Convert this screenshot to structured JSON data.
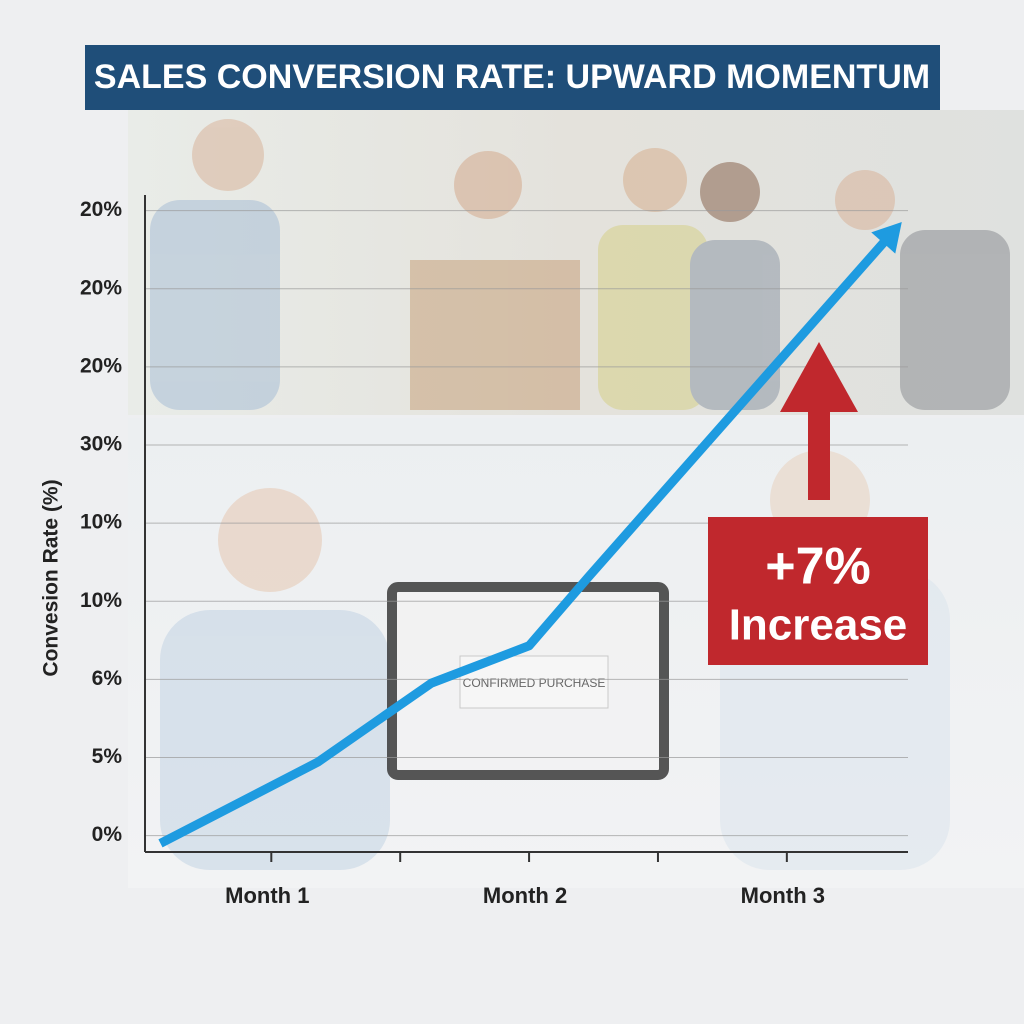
{
  "chart_data": {
    "type": "line",
    "title": "SALES CONVERSION RATE: UPWARD MOMENTUM",
    "ylabel": "Convesion Rate (%)",
    "x": [
      0.57,
      1.18,
      1.62,
      2.0,
      2.23,
      3.41
    ],
    "series": [
      {
        "name": "Conversion rate",
        "color": "#1e9be0",
        "values": [
          -0.1,
          0.94,
          1.95,
          2.43,
          3.31,
          7.72
        ]
      }
    ],
    "xlim": [
      0.51,
      3.47
    ],
    "xticks": [
      {
        "value": 1,
        "label": "Month 1"
      },
      {
        "value": 2,
        "label": "Month 2"
      },
      {
        "value": 3,
        "label": "Month 3"
      }
    ],
    "ylim": [
      -0.21,
      8.2
    ],
    "yticks": [
      {
        "value": 0,
        "label": "0%"
      },
      {
        "value": 1,
        "label": "5%"
      },
      {
        "value": 2,
        "label": "6%"
      },
      {
        "value": 3,
        "label": "10%"
      },
      {
        "value": 4,
        "label": "10%"
      },
      {
        "value": 5,
        "label": "30%"
      },
      {
        "value": 6,
        "label": "20%"
      },
      {
        "value": 7,
        "label": "20%"
      },
      {
        "value": 8,
        "label": "20%"
      }
    ],
    "grid": true,
    "annotation": {
      "value_text": "+7%",
      "text": "Increase",
      "color": "#c0282d"
    },
    "screen_text": "CONFIRMED PURCHASE"
  }
}
